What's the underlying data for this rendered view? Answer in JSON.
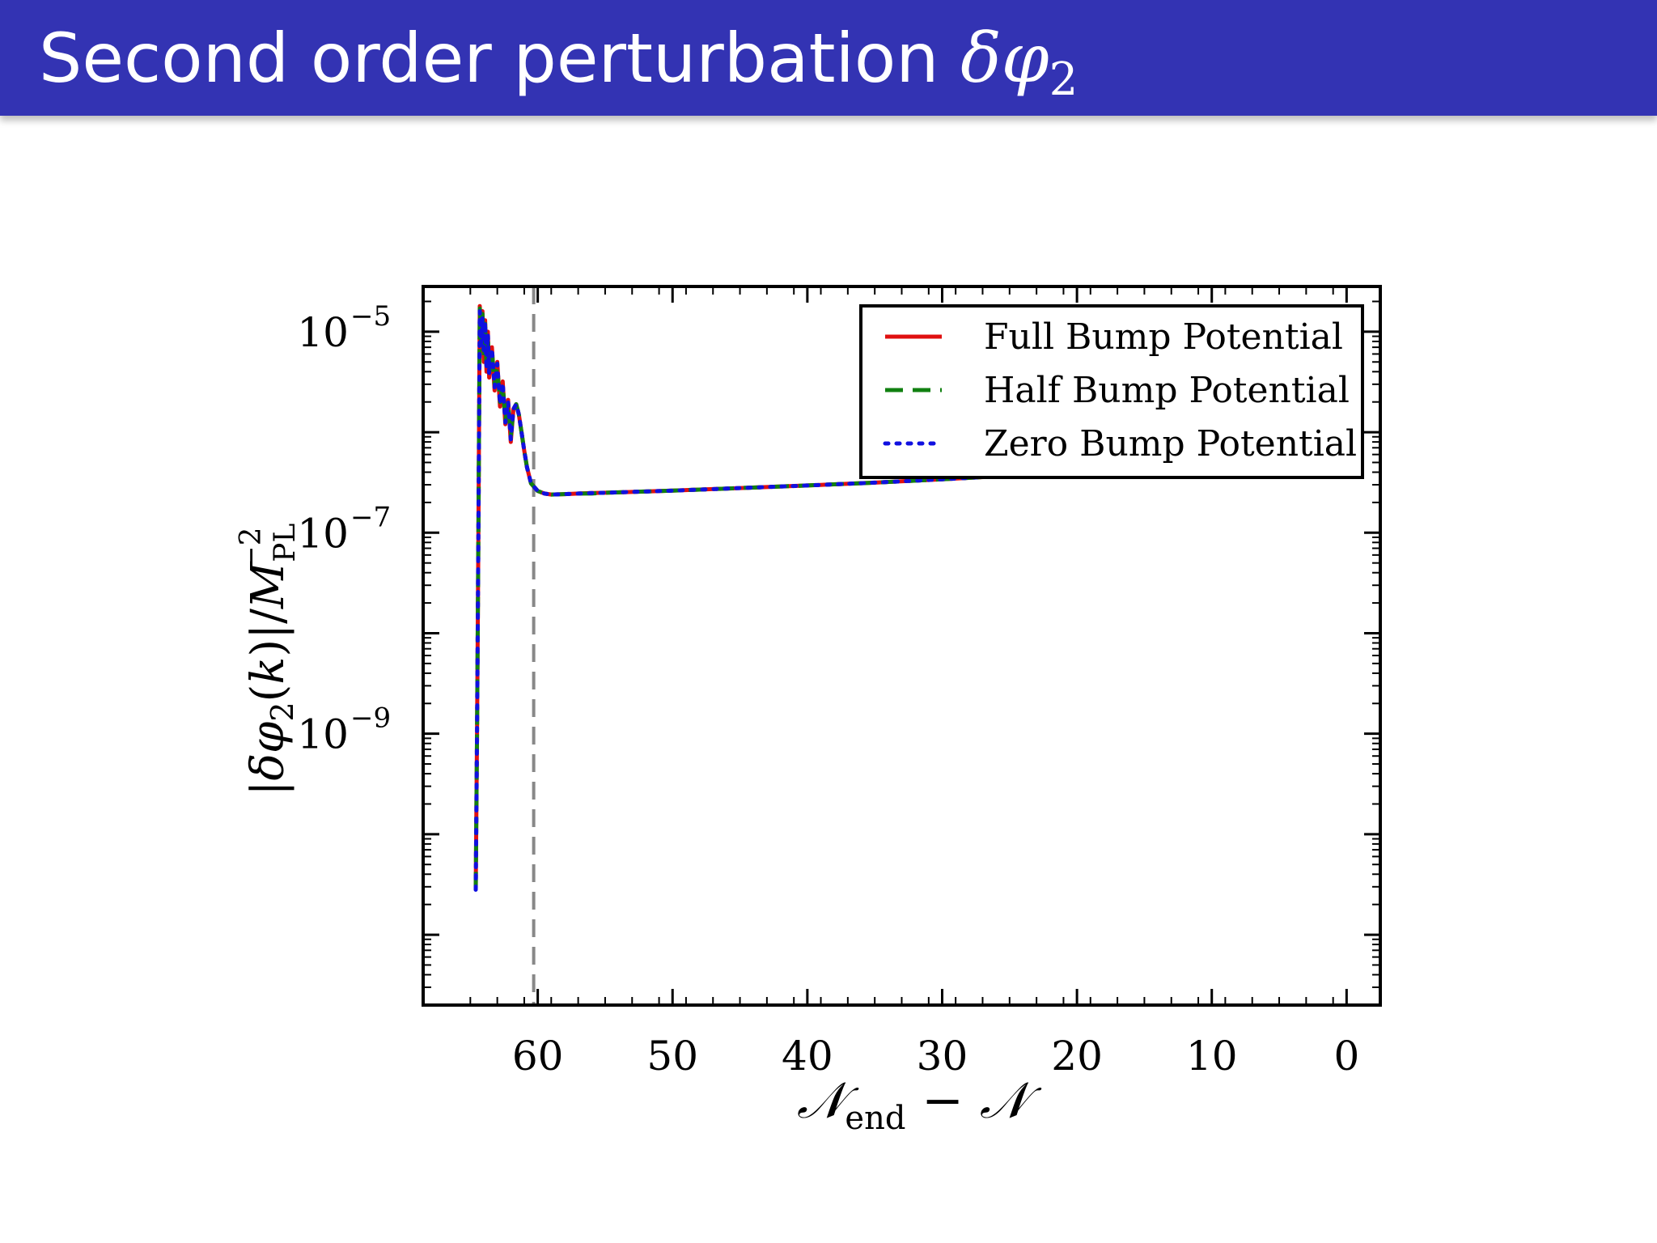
{
  "slide": {
    "title_text": "Second order perturbation ",
    "title_symbol": "δφ",
    "title_subscript": "2",
    "bar_color": "#3333b3"
  },
  "chart_data": {
    "type": "line",
    "xlabel": "𝒩end − 𝒩",
    "ylabel": "|δφ2(k)|/M_PL^-2",
    "xlim": [
      68.5,
      -2.5
    ],
    "ylim_log10": [
      -11.7,
      -4.55
    ],
    "y_scale": "log",
    "x_reversed": true,
    "grid": false,
    "legend_position": "top-right",
    "x_ticks": [
      60,
      50,
      40,
      30,
      20,
      10,
      0
    ],
    "x_tick_labels": [
      "60",
      "50",
      "40",
      "30",
      "20",
      "10",
      "0"
    ],
    "y_ticks": [
      {
        "base": "10",
        "exp": "−5",
        "value": 1e-05
      },
      {
        "base": "10",
        "exp": "−7",
        "value": 1e-07
      },
      {
        "base": "10",
        "exp": "−9",
        "value": 1e-09
      }
    ],
    "reference_line": {
      "x": 60.3,
      "style": "dashed",
      "color": "#888888"
    },
    "series": [
      {
        "name": "Full Bump Potential",
        "color": "#e01010",
        "style": "solid",
        "x": [
          64.6,
          64.5,
          64.4,
          64.3,
          64.2,
          64.1,
          64.0,
          63.9,
          63.8,
          63.7,
          63.6,
          63.4,
          63.2,
          63.0,
          62.8,
          62.6,
          62.4,
          62.2,
          62.0,
          61.8,
          61.6,
          61.4,
          61.2,
          61.0,
          60.8,
          60.5,
          60.0,
          59.5,
          59.0,
          58.0,
          57.0,
          56.0,
          55.0,
          50.0,
          45.0,
          40.0,
          35.0,
          30.0,
          25.0,
          20.0,
          15.0,
          10.0,
          7.0,
          5.0,
          3.0,
          2.0,
          1.0,
          0.0
        ],
        "y": [
          2.8e-11,
          1e-09,
          1e-07,
          1.8e-05,
          7e-06,
          1.6e-05,
          5e-06,
          1.3e-05,
          4e-06,
          1e-05,
          3.5e-06,
          7e-06,
          2.6e-06,
          5e-06,
          1.8e-06,
          3.2e-06,
          1.2e-06,
          2.1e-06,
          8e-07,
          1.7e-06,
          1.9e-06,
          1.5e-06,
          1e-06,
          6.5e-07,
          4.5e-07,
          3.1e-07,
          2.6e-07,
          2.45e-07,
          2.4e-07,
          2.42e-07,
          2.45e-07,
          2.48e-07,
          2.5e-07,
          2.62e-07,
          2.78e-07,
          2.95e-07,
          3.15e-07,
          3.4e-07,
          3.7e-07,
          4.1e-07,
          4.7e-07,
          5.6e-07,
          6.6e-07,
          7.6e-07,
          9.2e-07,
          1.08e-06,
          1.35e-06,
          2.1e-06
        ]
      },
      {
        "name": "Half Bump Potential",
        "color": "#108010",
        "style": "dashed",
        "x": [
          64.6,
          64.5,
          64.4,
          64.3,
          64.2,
          64.1,
          64.0,
          63.9,
          63.8,
          63.7,
          63.6,
          63.4,
          63.2,
          63.0,
          62.8,
          62.6,
          62.4,
          62.2,
          62.0,
          61.8,
          61.6,
          61.4,
          61.2,
          61.0,
          60.8,
          60.5,
          60.0,
          59.5,
          59.0,
          58.0,
          57.0,
          56.0,
          55.0,
          50.0,
          45.0,
          40.0,
          35.0,
          30.0,
          25.0,
          20.0,
          15.0,
          10.0,
          7.0,
          5.0,
          3.0,
          2.0,
          1.0,
          0.0
        ],
        "y": [
          2.8e-11,
          1e-09,
          1e-07,
          1.7e-05,
          8e-06,
          1.5e-05,
          5.5e-06,
          1.2e-05,
          4.5e-06,
          9e-06,
          4e-06,
          6.5e-06,
          3e-06,
          4.5e-06,
          2e-06,
          3e-06,
          1.3e-06,
          2e-06,
          9e-07,
          1.7e-06,
          1.9e-06,
          1.5e-06,
          1e-06,
          6.5e-07,
          4.5e-07,
          3.1e-07,
          2.6e-07,
          2.45e-07,
          2.4e-07,
          2.42e-07,
          2.45e-07,
          2.45e-07,
          2.5e-07,
          2.62e-07,
          2.78e-07,
          2.95e-07,
          3.15e-07,
          3.4e-07,
          3.7e-07,
          4.1e-07,
          4.7e-07,
          5.6e-07,
          6.6e-07,
          7.6e-07,
          9.2e-07,
          1.08e-06,
          1.35e-06,
          2.1e-06
        ]
      },
      {
        "name": "Zero Bump Potential",
        "color": "#1010e0",
        "style": "dotted",
        "x": [
          64.6,
          64.5,
          64.4,
          64.3,
          64.2,
          64.1,
          64.0,
          63.9,
          63.8,
          63.7,
          63.6,
          63.4,
          63.2,
          63.0,
          62.8,
          62.6,
          62.4,
          62.2,
          62.0,
          61.8,
          61.6,
          61.4,
          61.2,
          61.0,
          60.8,
          60.5,
          60.0,
          59.5,
          59.0,
          58.0,
          57.0,
          56.0,
          55.0,
          50.0,
          45.0,
          40.0,
          35.0,
          30.0,
          25.0,
          20.0,
          15.0,
          10.0,
          7.0,
          5.0,
          3.0,
          2.0,
          1.0,
          0.0
        ],
        "y": [
          2.8e-11,
          1e-09,
          1e-07,
          1.6e-05,
          7.5e-06,
          1.4e-05,
          6e-06,
          1.25e-05,
          4.2e-06,
          9.5e-06,
          3.8e-06,
          6.8e-06,
          2.8e-06,
          4.8e-06,
          1.9e-06,
          3.1e-06,
          1.25e-06,
          2e-06,
          8.5e-07,
          1.7e-06,
          1.9e-06,
          1.5e-06,
          1e-06,
          6.5e-07,
          4.5e-07,
          3.1e-07,
          2.6e-07,
          2.45e-07,
          2.4e-07,
          2.42e-07,
          2.45e-07,
          2.48e-07,
          2.5e-07,
          2.62e-07,
          2.78e-07,
          2.95e-07,
          3.15e-07,
          3.4e-07,
          3.7e-07,
          4.1e-07,
          4.7e-07,
          5.6e-07,
          6.6e-07,
          7.6e-07,
          9.2e-07,
          1.08e-06,
          1.35e-06,
          2.1e-06
        ]
      }
    ]
  }
}
